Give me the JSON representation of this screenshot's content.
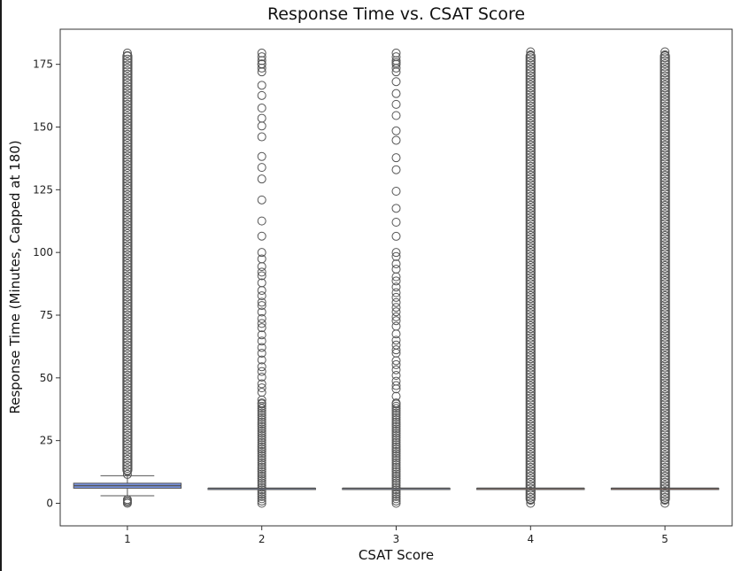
{
  "chart_data": {
    "type": "box",
    "title": "Response Time vs. CSAT Score",
    "xlabel": "CSAT Score",
    "ylabel": "Response Time (Minutes, Capped at 180)",
    "categories": [
      "1",
      "2",
      "3",
      "4",
      "5"
    ],
    "ylim": [
      -9,
      189
    ],
    "yticks": [
      0,
      25,
      50,
      75,
      100,
      125,
      150,
      175
    ],
    "grid": false,
    "legend": "none",
    "boxes": [
      {
        "category": "1",
        "whisker_low": 3,
        "q1": 6,
        "median": 7,
        "q3": 8,
        "whisker_high": 11,
        "fill": "#7b96e6",
        "outlier_range": [
          0,
          180
        ],
        "outlier_density": "dense"
      },
      {
        "category": "2",
        "whisker_low": 6,
        "q1": 6,
        "median": 6,
        "q3": 6,
        "whisker_high": 6,
        "fill": "#9ab0ef",
        "outlier_range": [
          0,
          180
        ],
        "outlier_density": "sparse"
      },
      {
        "category": "3",
        "whisker_low": 6,
        "q1": 6,
        "median": 6,
        "q3": 6,
        "whisker_high": 6,
        "fill": "#b9c7f1",
        "outlier_range": [
          0,
          180
        ],
        "outlier_density": "sparse"
      },
      {
        "category": "4",
        "whisker_low": 6,
        "q1": 6,
        "median": 6,
        "q3": 6,
        "whisker_high": 6,
        "fill": "#d9a58a",
        "outlier_range": [
          0,
          180
        ],
        "outlier_density": "dense"
      },
      {
        "category": "5",
        "whisker_low": 6,
        "q1": 6,
        "median": 6,
        "q3": 6,
        "whisker_high": 6,
        "fill": "#d27a62",
        "outlier_range": [
          0,
          180
        ],
        "outlier_density": "dense"
      }
    ],
    "colors": {
      "outlier_edge": "#555555",
      "median_line": "#555555",
      "axis": "#333333"
    }
  }
}
